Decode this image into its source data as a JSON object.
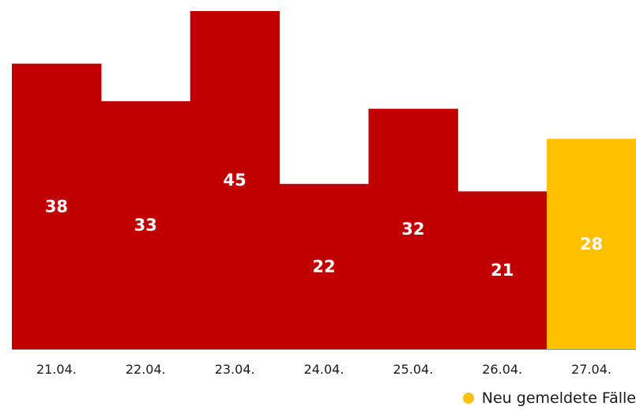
{
  "chart_data": {
    "type": "bar",
    "categories": [
      "21.04.",
      "22.04.",
      "23.04.",
      "24.04.",
      "25.04.",
      "26.04.",
      "27.04."
    ],
    "values": [
      38,
      33,
      45,
      22,
      32,
      21,
      28
    ],
    "highlight_index": 6,
    "title": "",
    "xlabel": "",
    "ylabel": "",
    "ylim": [
      0,
      45
    ],
    "grid": false,
    "legend": {
      "position": "bottom-right",
      "entries": [
        {
          "label": "Neu gemeldete Fälle",
          "color": "#ffc000"
        }
      ]
    },
    "colors": {
      "default_bar": "#c00000",
      "highlight_bar": "#ffc000",
      "bar_label": "#ffffff",
      "baseline": "#9e9e9e"
    }
  }
}
